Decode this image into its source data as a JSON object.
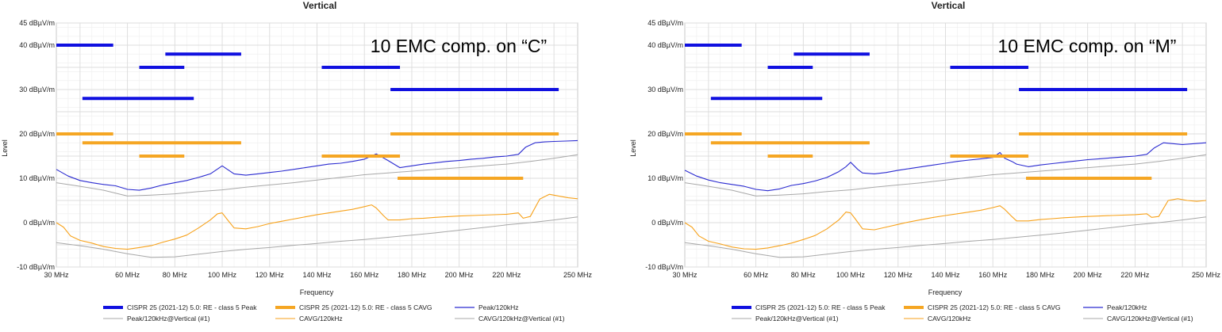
{
  "colors": {
    "limit_peak": "#1010e0",
    "limit_cavg": "#f5a623",
    "peak_trace": "#2a2ad0",
    "cavg_trace": "#f7a21b",
    "vertical_ref": "#a8a8a8",
    "grid": "#dcdcdc",
    "grid_minor": "#eeeeee"
  },
  "chart_data": [
    {
      "type": "line",
      "title": "Vertical",
      "annotation": "10 EMC comp. on “C”",
      "xlabel": "Frequency",
      "ylabel": "Level",
      "xlim": [
        30,
        250
      ],
      "ylim": [
        -10,
        45
      ],
      "grid": true,
      "x_ticks": [
        "30 MHz",
        "60 MHz",
        "80 MHz",
        "100 MHz",
        "120 MHz",
        "140 MHz",
        "160 MHz",
        "180 MHz",
        "200 MHz",
        "220 MHz",
        "250 MHz"
      ],
      "y_ticks": [
        "45 dBµV/m",
        "40 dBµV/m",
        "30 dBµV/m",
        "20 dBµV/m",
        "10 dBµV/m",
        "0 dBµV/m",
        "-10 dBµV/m"
      ],
      "legend": [
        {
          "label": "CISPR 25 (2021-12) 5.0: RE - class 5 Peak",
          "style": "limit_peak"
        },
        {
          "label": "CISPR 25 (2021-12) 5.0: RE - class 5 CAVG",
          "style": "limit_cavg"
        },
        {
          "label": "Peak/120kHz",
          "style": "peak_trace"
        },
        {
          "label": "Peak/120kHz@Vertical (#1)",
          "style": "vertical_ref"
        },
        {
          "label": "CAVG/120kHz",
          "style": "cavg_trace"
        },
        {
          "label": "CAVG/120kHz@Vertical (#1)",
          "style": "vertical_ref"
        }
      ],
      "limits_peak": [
        {
          "x": [
            30,
            54
          ],
          "y": 40
        },
        {
          "x": [
            76,
            108
          ],
          "y": 38
        },
        {
          "x": [
            65,
            84
          ],
          "y": 35
        },
        {
          "x": [
            142,
            175
          ],
          "y": 35
        },
        {
          "x": [
            41,
            88
          ],
          "y": 28
        },
        {
          "x": [
            171,
            242
          ],
          "y": 30
        }
      ],
      "limits_cavg": [
        {
          "x": [
            30,
            54
          ],
          "y": 20
        },
        {
          "x": [
            41,
            108
          ],
          "y": 18
        },
        {
          "x": [
            65,
            84
          ],
          "y": 15
        },
        {
          "x": [
            142,
            175
          ],
          "y": 15
        },
        {
          "x": [
            171,
            242
          ],
          "y": 20
        },
        {
          "x": [
            174,
            227
          ],
          "y": 10
        }
      ],
      "series": [
        {
          "name": "Peak/120kHz",
          "color_key": "peak_trace",
          "x": [
            30,
            35,
            40,
            45,
            50,
            55,
            60,
            65,
            70,
            75,
            80,
            85,
            90,
            95,
            100,
            105,
            110,
            115,
            120,
            125,
            130,
            135,
            140,
            145,
            150,
            155,
            160,
            165,
            170,
            175,
            180,
            185,
            190,
            195,
            200,
            205,
            210,
            215,
            220,
            225,
            228,
            232,
            236,
            240,
            245,
            250
          ],
          "y": [
            12,
            10.5,
            9.5,
            9,
            8.6,
            8.3,
            7.5,
            7.3,
            7.8,
            8.5,
            9,
            9.5,
            10.2,
            11,
            12.8,
            11,
            10.7,
            11,
            11.3,
            11.6,
            12,
            12.4,
            12.8,
            13.2,
            13.4,
            13.8,
            14.3,
            15.5,
            14,
            12.4,
            12.8,
            13.2,
            13.5,
            13.8,
            14,
            14.3,
            14.5,
            14.8,
            15,
            15.4,
            17,
            18,
            18.2,
            18.3,
            18.4,
            18.5
          ]
        },
        {
          "name": "Peak/120kHz@Vertical (#1)",
          "color_key": "vertical_ref",
          "x": [
            30,
            40,
            50,
            60,
            70,
            80,
            90,
            100,
            110,
            120,
            130,
            140,
            150,
            160,
            170,
            180,
            190,
            200,
            210,
            220,
            230,
            240,
            250
          ],
          "y": [
            9,
            8.2,
            7.3,
            6,
            6.2,
            6.5,
            7,
            7.4,
            8,
            8.5,
            9,
            9.6,
            10.2,
            10.8,
            11.2,
            11.6,
            12,
            12.4,
            12.8,
            13.2,
            13.8,
            14.5,
            15.3
          ]
        },
        {
          "name": "CAVG/120kHz",
          "color_key": "cavg_trace",
          "x": [
            30,
            33,
            36,
            40,
            45,
            50,
            55,
            60,
            65,
            70,
            75,
            80,
            85,
            90,
            95,
            98,
            100,
            102,
            105,
            110,
            115,
            120,
            125,
            130,
            135,
            140,
            145,
            150,
            155,
            160,
            163,
            165,
            168,
            170,
            175,
            180,
            185,
            190,
            200,
            210,
            220,
            225,
            227,
            230,
            234,
            238,
            242,
            246,
            250
          ],
          "y": [
            0,
            -1,
            -3,
            -4,
            -4.6,
            -5.4,
            -5.8,
            -6,
            -5.6,
            -5.2,
            -4.4,
            -3.7,
            -2.8,
            -1.2,
            0.6,
            2,
            2.2,
            0.8,
            -1.2,
            -1.4,
            -0.9,
            -0.2,
            0.3,
            0.8,
            1.3,
            1.8,
            2.2,
            2.6,
            3,
            3.6,
            4,
            3.3,
            1.6,
            0.6,
            0.6,
            0.9,
            1,
            1.2,
            1.5,
            1.7,
            1.9,
            2.2,
            1,
            1.4,
            5.3,
            6.4,
            6,
            5.6,
            5.4
          ]
        },
        {
          "name": "CAVG/120kHz@Vertical (#1)",
          "color_key": "vertical_ref",
          "x": [
            30,
            40,
            50,
            60,
            70,
            80,
            90,
            100,
            110,
            120,
            130,
            140,
            150,
            160,
            170,
            180,
            190,
            200,
            210,
            220,
            230,
            240,
            250
          ],
          "y": [
            -4.5,
            -5.2,
            -6,
            -7,
            -7.8,
            -7.7,
            -7.1,
            -6.5,
            -6,
            -5.6,
            -5.1,
            -4.7,
            -4.2,
            -3.8,
            -3.3,
            -2.8,
            -2.3,
            -1.7,
            -1.1,
            -0.5,
            0,
            0.6,
            1.3
          ]
        }
      ]
    },
    {
      "type": "line",
      "title": "Vertical",
      "annotation": "10 EMC comp. on “M”",
      "xlabel": "Frequency",
      "ylabel": "Level",
      "xlim": [
        30,
        250
      ],
      "ylim": [
        -10,
        45
      ],
      "grid": true,
      "x_ticks": [
        "30 MHz",
        "60 MHz",
        "80 MHz",
        "100 MHz",
        "120 MHz",
        "140 MHz",
        "160 MHz",
        "180 MHz",
        "200 MHz",
        "220 MHz",
        "250 MHz"
      ],
      "y_ticks": [
        "45 dBµV/m",
        "40 dBµV/m",
        "30 dBµV/m",
        "20 dBµV/m",
        "10 dBµV/m",
        "0 dBµV/m",
        "-10 dBµV/m"
      ],
      "legend": [
        {
          "label": "CISPR 25 (2021-12) 5.0: RE - class 5 Peak",
          "style": "limit_peak"
        },
        {
          "label": "CISPR 25 (2021-12) 5.0: RE - class 5 CAVG",
          "style": "limit_cavg"
        },
        {
          "label": "Peak/120kHz",
          "style": "peak_trace"
        },
        {
          "label": "Peak/120kHz@Vertical (#1)",
          "style": "vertical_ref"
        },
        {
          "label": "CAVG/120kHz",
          "style": "cavg_trace"
        },
        {
          "label": "CAVG/120kHz@Vertical (#1)",
          "style": "vertical_ref"
        }
      ],
      "limits_peak": [
        {
          "x": [
            30,
            54
          ],
          "y": 40
        },
        {
          "x": [
            76,
            108
          ],
          "y": 38
        },
        {
          "x": [
            65,
            84
          ],
          "y": 35
        },
        {
          "x": [
            142,
            175
          ],
          "y": 35
        },
        {
          "x": [
            41,
            88
          ],
          "y": 28
        },
        {
          "x": [
            171,
            242
          ],
          "y": 30
        }
      ],
      "limits_cavg": [
        {
          "x": [
            30,
            54
          ],
          "y": 20
        },
        {
          "x": [
            41,
            108
          ],
          "y": 18
        },
        {
          "x": [
            65,
            84
          ],
          "y": 15
        },
        {
          "x": [
            142,
            175
          ],
          "y": 15
        },
        {
          "x": [
            171,
            242
          ],
          "y": 20
        },
        {
          "x": [
            174,
            227
          ],
          "y": 10
        }
      ],
      "series": [
        {
          "name": "Peak/120kHz",
          "color_key": "peak_trace",
          "x": [
            30,
            35,
            40,
            45,
            50,
            55,
            60,
            65,
            70,
            75,
            80,
            85,
            90,
            95,
            98,
            100,
            103,
            105,
            110,
            115,
            120,
            125,
            130,
            135,
            140,
            145,
            150,
            155,
            160,
            163,
            165,
            168,
            170,
            175,
            180,
            185,
            190,
            195,
            200,
            205,
            210,
            215,
            220,
            225,
            228,
            232,
            236,
            240,
            245,
            250
          ],
          "y": [
            11.8,
            10.5,
            9.6,
            9,
            8.6,
            8.2,
            7.5,
            7.2,
            7.6,
            8.4,
            8.8,
            9.4,
            10.2,
            11.5,
            12.6,
            13.6,
            12,
            11.2,
            11,
            11.3,
            11.8,
            12.2,
            12.6,
            13,
            13.4,
            13.8,
            14.1,
            14.4,
            14.7,
            15.8,
            14.5,
            13.8,
            13.2,
            12.6,
            13,
            13.3,
            13.6,
            13.9,
            14.2,
            14.4,
            14.6,
            14.8,
            15,
            15.4,
            16.8,
            18,
            17.8,
            17.6,
            17.8,
            18
          ]
        },
        {
          "name": "Peak/120kHz@Vertical (#1)",
          "color_key": "vertical_ref",
          "x": [
            30,
            40,
            50,
            60,
            70,
            80,
            90,
            100,
            110,
            120,
            130,
            140,
            150,
            160,
            170,
            180,
            190,
            200,
            210,
            220,
            230,
            240,
            250
          ],
          "y": [
            9,
            8.2,
            7.3,
            6,
            6.2,
            6.5,
            7,
            7.4,
            8,
            8.5,
            9,
            9.6,
            10.2,
            10.8,
            11.2,
            11.6,
            12,
            12.4,
            12.8,
            13.2,
            13.8,
            14.5,
            15.3
          ]
        },
        {
          "name": "CAVG/120kHz",
          "color_key": "cavg_trace",
          "x": [
            30,
            33,
            36,
            40,
            45,
            50,
            55,
            60,
            65,
            70,
            75,
            80,
            85,
            90,
            95,
            98,
            100,
            102,
            105,
            110,
            115,
            120,
            125,
            130,
            135,
            140,
            145,
            150,
            155,
            160,
            163,
            165,
            168,
            170,
            175,
            180,
            185,
            190,
            200,
            210,
            220,
            225,
            227,
            230,
            234,
            238,
            242,
            246,
            250
          ],
          "y": [
            0,
            -1,
            -3,
            -4.2,
            -4.8,
            -5.5,
            -5.9,
            -6,
            -5.7,
            -5.2,
            -4.6,
            -3.8,
            -2.9,
            -1.4,
            0.6,
            2.4,
            2.2,
            0.8,
            -1.4,
            -1.6,
            -1,
            -0.4,
            0.2,
            0.7,
            1.2,
            1.6,
            2,
            2.4,
            2.8,
            3.4,
            3.8,
            3,
            1.4,
            0.4,
            0.4,
            0.7,
            0.9,
            1.1,
            1.4,
            1.6,
            1.8,
            2,
            1.2,
            1.4,
            5,
            5.4,
            5,
            4.8,
            5
          ]
        },
        {
          "name": "CAVG/120kHz@Vertical (#1)",
          "color_key": "vertical_ref",
          "x": [
            30,
            40,
            50,
            60,
            70,
            80,
            90,
            100,
            110,
            120,
            130,
            140,
            150,
            160,
            170,
            180,
            190,
            200,
            210,
            220,
            230,
            240,
            250
          ],
          "y": [
            -4.5,
            -5.2,
            -6,
            -7,
            -7.8,
            -7.7,
            -7.1,
            -6.5,
            -6,
            -5.6,
            -5.1,
            -4.7,
            -4.2,
            -3.8,
            -3.3,
            -2.8,
            -2.3,
            -1.7,
            -1.1,
            -0.5,
            0,
            0.6,
            1.3
          ]
        }
      ]
    }
  ]
}
